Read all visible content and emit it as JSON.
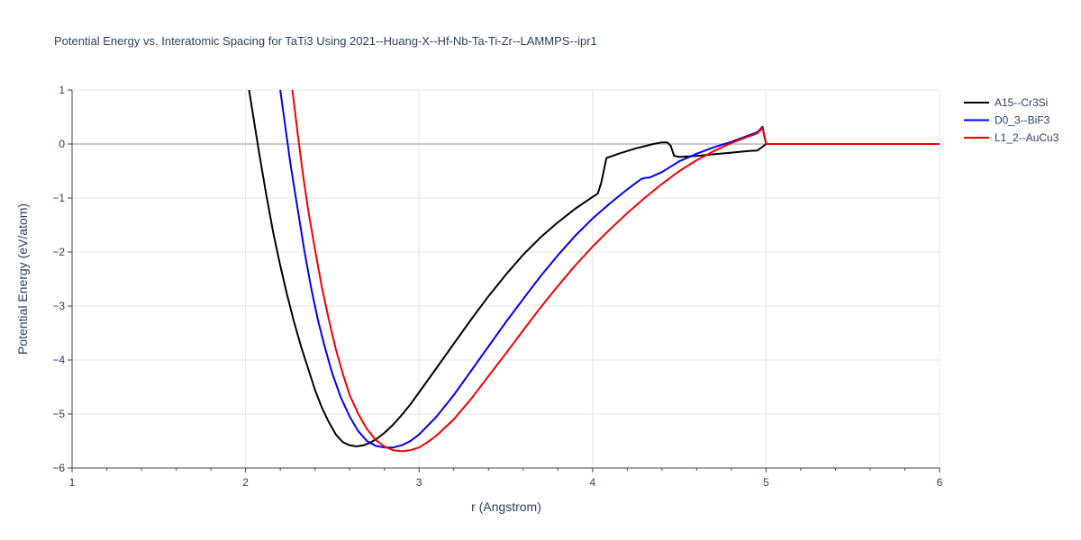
{
  "chart_data": {
    "type": "line",
    "title": "Potential Energy vs. Interatomic Spacing for TaTi3 Using 2021--Huang-X--Hf-Nb-Ta-Ti-Zr--LAMMPS--ipr1",
    "xlabel": "r (Angstrom)",
    "ylabel": "Potential Energy (eV/atom)",
    "xlim": [
      1,
      6
    ],
    "ylim": [
      -6,
      1
    ],
    "xticks": [
      1,
      2,
      3,
      4,
      5,
      6
    ],
    "yticks": [
      1,
      0,
      -1,
      -2,
      -3,
      -4,
      -5,
      -6
    ],
    "grid": true,
    "legend_position": "top-right",
    "series": [
      {
        "name": "A15--Cr3Si",
        "color": "#000000",
        "x": [
          2.02,
          2.05,
          2.08,
          2.12,
          2.16,
          2.2,
          2.24,
          2.28,
          2.32,
          2.36,
          2.4,
          2.44,
          2.48,
          2.52,
          2.56,
          2.6,
          2.64,
          2.68,
          2.72,
          2.76,
          2.8,
          2.85,
          2.9,
          2.95,
          3.0,
          3.1,
          3.2,
          3.3,
          3.4,
          3.5,
          3.6,
          3.7,
          3.8,
          3.9,
          4.0,
          4.03,
          4.05,
          4.08,
          4.15,
          4.25,
          4.35,
          4.4,
          4.43,
          4.45,
          4.47,
          4.5,
          4.6,
          4.7,
          4.8,
          4.9,
          4.95,
          4.98,
          5.0,
          5.2,
          5.5,
          5.8,
          6.0
        ],
        "y": [
          1.0,
          0.4,
          -0.2,
          -0.95,
          -1.65,
          -2.25,
          -2.8,
          -3.3,
          -3.75,
          -4.15,
          -4.55,
          -4.88,
          -5.15,
          -5.38,
          -5.52,
          -5.58,
          -5.6,
          -5.58,
          -5.53,
          -5.45,
          -5.35,
          -5.2,
          -5.02,
          -4.82,
          -4.6,
          -4.15,
          -3.7,
          -3.25,
          -2.82,
          -2.42,
          -2.05,
          -1.73,
          -1.45,
          -1.2,
          -0.98,
          -0.92,
          -0.72,
          -0.26,
          -0.18,
          -0.08,
          0.0,
          0.03,
          0.03,
          -0.03,
          -0.22,
          -0.24,
          -0.22,
          -0.19,
          -0.16,
          -0.13,
          -0.12,
          -0.05,
          0.0,
          0.0,
          0.0,
          0.0,
          0.0
        ]
      },
      {
        "name": "D0_3--BiF3",
        "color": "#0000ee",
        "x": [
          2.2,
          2.23,
          2.26,
          2.3,
          2.34,
          2.38,
          2.42,
          2.46,
          2.5,
          2.55,
          2.6,
          2.65,
          2.7,
          2.75,
          2.8,
          2.85,
          2.9,
          2.95,
          3.0,
          3.1,
          3.2,
          3.3,
          3.4,
          3.5,
          3.6,
          3.7,
          3.8,
          3.9,
          4.0,
          4.1,
          4.2,
          4.25,
          4.28,
          4.3,
          4.33,
          4.4,
          4.5,
          4.6,
          4.7,
          4.8,
          4.9,
          4.95,
          4.98,
          5.0,
          5.2,
          5.5,
          5.8,
          6.0
        ],
        "y": [
          1.0,
          0.3,
          -0.4,
          -1.2,
          -2.0,
          -2.7,
          -3.3,
          -3.8,
          -4.25,
          -4.7,
          -5.05,
          -5.32,
          -5.5,
          -5.59,
          -5.62,
          -5.62,
          -5.58,
          -5.5,
          -5.38,
          -5.05,
          -4.65,
          -4.2,
          -3.75,
          -3.3,
          -2.87,
          -2.45,
          -2.06,
          -1.7,
          -1.38,
          -1.1,
          -0.84,
          -0.72,
          -0.65,
          -0.63,
          -0.62,
          -0.52,
          -0.32,
          -0.18,
          -0.06,
          0.04,
          0.16,
          0.22,
          0.32,
          0.0,
          0.0,
          0.0,
          0.0,
          0.0
        ]
      },
      {
        "name": "L1_2--AuCu3",
        "color": "#ee0000",
        "x": [
          2.27,
          2.3,
          2.33,
          2.36,
          2.4,
          2.44,
          2.48,
          2.52,
          2.56,
          2.6,
          2.65,
          2.7,
          2.75,
          2.8,
          2.85,
          2.9,
          2.95,
          3.0,
          3.05,
          3.1,
          3.2,
          3.3,
          3.4,
          3.5,
          3.6,
          3.7,
          3.8,
          3.9,
          4.0,
          4.1,
          4.2,
          4.3,
          4.4,
          4.5,
          4.6,
          4.7,
          4.8,
          4.9,
          4.95,
          4.98,
          5.0,
          5.2,
          5.5,
          5.8,
          6.0
        ],
        "y": [
          1.0,
          0.2,
          -0.55,
          -1.2,
          -1.95,
          -2.65,
          -3.25,
          -3.8,
          -4.25,
          -4.65,
          -5.0,
          -5.28,
          -5.48,
          -5.6,
          -5.67,
          -5.69,
          -5.67,
          -5.62,
          -5.52,
          -5.4,
          -5.1,
          -4.72,
          -4.3,
          -3.88,
          -3.45,
          -3.03,
          -2.63,
          -2.25,
          -1.9,
          -1.58,
          -1.28,
          -1.0,
          -0.74,
          -0.5,
          -0.3,
          -0.13,
          0.02,
          0.14,
          0.2,
          0.3,
          0.0,
          0.0,
          0.0,
          0.0,
          0.0
        ]
      }
    ]
  }
}
